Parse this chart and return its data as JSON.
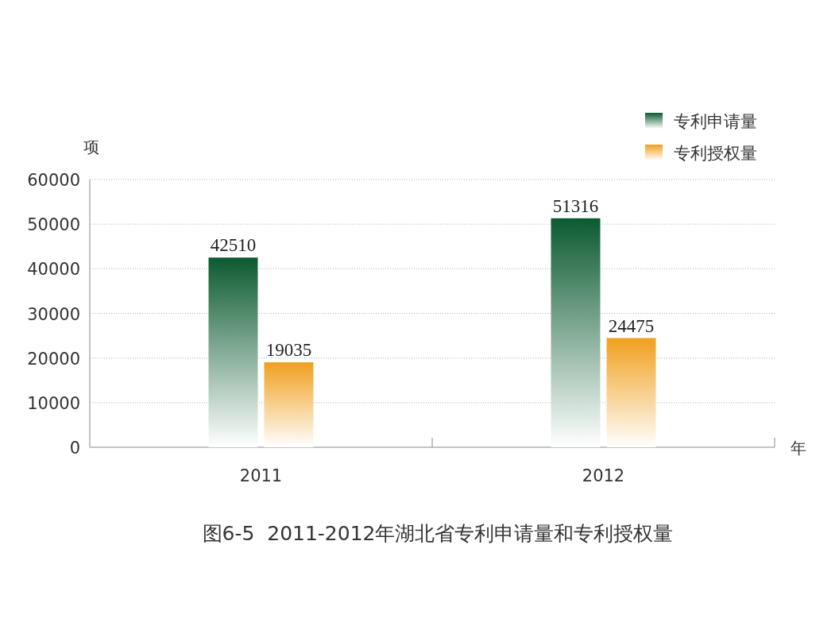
{
  "chart_data": {
    "type": "bar",
    "title": "图6-5  2011-2012年湖北省专利申请量和专利授权量",
    "xlabel": "年",
    "ylabel": "项",
    "categories": [
      "2011",
      "2012"
    ],
    "series": [
      {
        "name": "专利申请量",
        "color": "#0b5a30",
        "values": [
          42510,
          51316
        ]
      },
      {
        "name": "专利授权量",
        "color": "#f0a01e",
        "values": [
          19035,
          24475
        ]
      }
    ],
    "ylim": [
      0,
      60000
    ],
    "yticks": [
      0,
      10000,
      20000,
      30000,
      40000,
      50000,
      60000
    ],
    "grid": "y",
    "legend": "top right",
    "data_labels": true
  }
}
